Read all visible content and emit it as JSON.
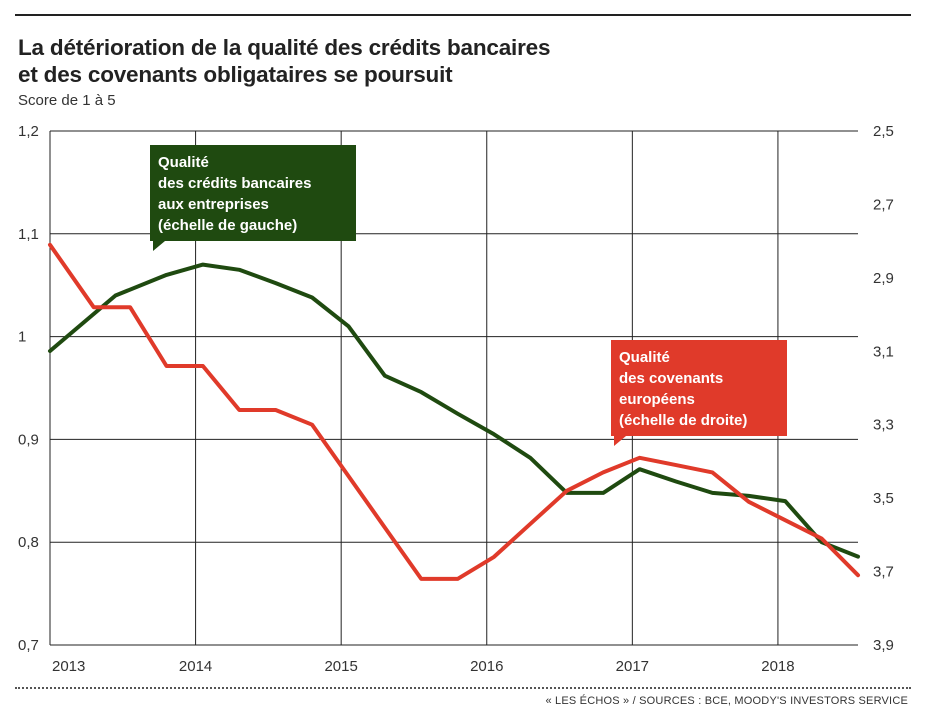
{
  "header": {
    "title_line1": "La détérioration de la qualité des crédits bancaires",
    "title_line2": "et des covenants obligataires se poursuit",
    "subtitle": "Score de 1 à 5"
  },
  "footer": {
    "source": "« LES ÉCHOS » / SOURCES : BCE, MOODY'S INVESTORS SERVICE"
  },
  "colors": {
    "green": "#1f4a10",
    "red": "#e03a2a",
    "grid": "#222222"
  },
  "chart_data": {
    "type": "line",
    "title": "La détérioration de la qualité des crédits bancaires et des covenants obligataires se poursuit",
    "subtitle": "Score de 1 à 5",
    "x_ticks": [
      2013,
      2014,
      2015,
      2016,
      2017,
      2018
    ],
    "x_tick_labels": [
      "2013",
      "2014",
      "2015",
      "2016",
      "2017",
      "2018"
    ],
    "xlim": [
      2013,
      2018.55
    ],
    "y_left": {
      "lim": [
        0.7,
        1.2
      ],
      "ticks": [
        1.2,
        1.1,
        1.0,
        0.9,
        0.8,
        0.7
      ],
      "tick_labels": [
        "1,2",
        "1,1",
        "1",
        "0,9",
        "0,8",
        "0,7"
      ]
    },
    "y_right": {
      "lim": [
        2.5,
        3.9
      ],
      "inverted": true,
      "ticks": [
        2.5,
        2.7,
        2.9,
        3.1,
        3.3,
        3.5,
        3.7,
        3.9
      ],
      "tick_labels": [
        "2,5",
        "2,7",
        "2,9",
        "3,1",
        "3,3",
        "3,5",
        "3,7",
        "3,9"
      ]
    },
    "grid": true,
    "series": [
      {
        "name": "Qualité des crédits bancaires aux entreprises (échelle de gauche)",
        "label_lines": [
          "Qualité",
          "des crédits bancaires",
          "aux entreprises",
          "(échelle de gauche)"
        ],
        "axis": "left",
        "color": "#1f4a10",
        "x": [
          2013.0,
          2013.45,
          2013.8,
          2014.05,
          2014.3,
          2014.55,
          2014.8,
          2015.05,
          2015.3,
          2015.55,
          2015.8,
          2016.05,
          2016.3,
          2016.55,
          2016.8,
          2017.05,
          2017.3,
          2017.55,
          2017.8,
          2018.05,
          2018.3,
          2018.55
        ],
        "y": [
          0.986,
          1.04,
          1.06,
          1.07,
          1.065,
          1.052,
          1.038,
          1.01,
          0.962,
          0.946,
          0.925,
          0.905,
          0.882,
          0.848,
          0.848,
          0.871,
          0.859,
          0.848,
          0.845,
          0.84,
          0.8,
          0.786
        ]
      },
      {
        "name": "Qualité des covenants européens (échelle de droite)",
        "label_lines": [
          "Qualité",
          "des covenants",
          "européens",
          "(échelle de droite)"
        ],
        "axis": "right",
        "color": "#e03a2a",
        "x": [
          2013.0,
          2013.3,
          2013.55,
          2013.8,
          2014.05,
          2014.3,
          2014.55,
          2014.8,
          2015.05,
          2015.3,
          2015.55,
          2015.8,
          2016.05,
          2016.3,
          2016.55,
          2016.8,
          2017.05,
          2017.3,
          2017.55,
          2017.8,
          2018.05,
          2018.3,
          2018.55
        ],
        "y": [
          2.81,
          2.98,
          2.98,
          3.14,
          3.14,
          3.26,
          3.26,
          3.3,
          3.44,
          3.58,
          3.72,
          3.72,
          3.66,
          3.57,
          3.48,
          3.43,
          3.39,
          3.41,
          3.43,
          3.51,
          3.56,
          3.61,
          3.71
        ]
      }
    ]
  }
}
